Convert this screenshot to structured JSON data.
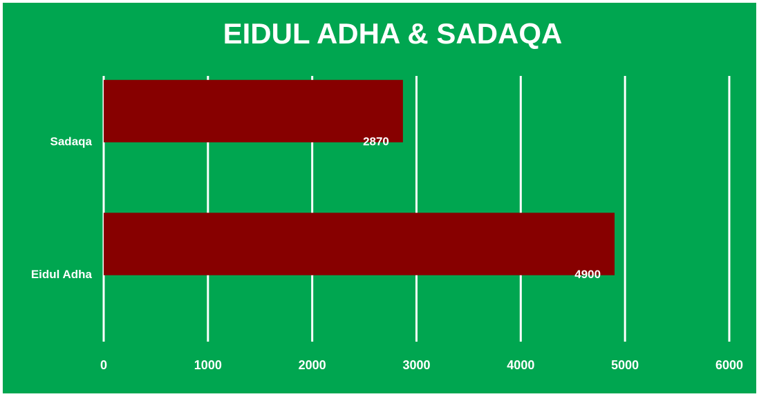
{
  "chart_data": {
    "type": "bar",
    "orientation": "horizontal",
    "title": "EIDUL ADHA & SADAQA",
    "categories": [
      "Sadaqa",
      "Eidul Adha"
    ],
    "values": [
      2870,
      4900
    ],
    "color": "#870000",
    "xlim": [
      0,
      6000
    ],
    "xticks": [
      0,
      1000,
      2000,
      3000,
      4000,
      5000,
      6000
    ],
    "grid": true,
    "background": "#00a650"
  }
}
